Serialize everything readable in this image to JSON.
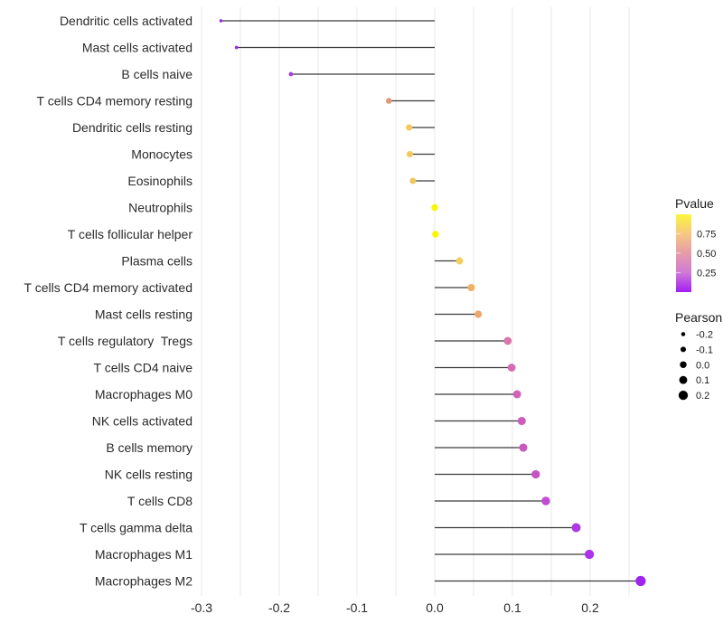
{
  "chart_data": {
    "type": "lollipop",
    "title": "",
    "xlabel": "",
    "ylabel": "",
    "xlim": [
      -0.305,
      0.303
    ],
    "grid": true,
    "grid_values": [
      -0.3,
      -0.25,
      -0.2,
      -0.15,
      -0.1,
      -0.05,
      0.0,
      0.05,
      0.1,
      0.15,
      0.2,
      0.25
    ],
    "x_ticks": [
      -0.3,
      -0.2,
      -0.1,
      0.0,
      0.1,
      0.2
    ],
    "x_tick_labels": [
      "-0.3",
      "-0.2",
      "-0.1",
      "0.0",
      "0.1",
      "0.2"
    ],
    "points": [
      {
        "label": "Dendritic cells activated",
        "pearson": -0.275,
        "color": "#a21ef0"
      },
      {
        "label": "Mast cells activated",
        "pearson": -0.255,
        "color": "#a026ec"
      },
      {
        "label": "B cells naive",
        "pearson": -0.185,
        "color": "#a738e5"
      },
      {
        "label": "T cells CD4 memory resting",
        "pearson": -0.059,
        "color": "#e2977b"
      },
      {
        "label": "Dendritic cells resting",
        "pearson": -0.033,
        "color": "#f2c95a"
      },
      {
        "label": "Monocytes",
        "pearson": -0.032,
        "color": "#f2c95a"
      },
      {
        "label": "Eosinophils",
        "pearson": -0.028,
        "color": "#f0c660"
      },
      {
        "label": "Neutrophils",
        "pearson": 0.0,
        "color": "#faf600"
      },
      {
        "label": "T cells follicular helper",
        "pearson": 0.001,
        "color": "#faf600"
      },
      {
        "label": "Plasma cells",
        "pearson": 0.032,
        "color": "#f2ce5e"
      },
      {
        "label": "T cells CD4 memory activated",
        "pearson": 0.047,
        "color": "#f0b165"
      },
      {
        "label": "Mast cells resting",
        "pearson": 0.056,
        "color": "#eea76d"
      },
      {
        "label": "T cells regulatory  Tregs",
        "pearson": 0.094,
        "color": "#d977ae"
      },
      {
        "label": "T cells CD4 naive",
        "pearson": 0.099,
        "color": "#d46cb3"
      },
      {
        "label": "Macrophages M0",
        "pearson": 0.106,
        "color": "#d162b7"
      },
      {
        "label": "NK cells activated",
        "pearson": 0.112,
        "color": "#ce5cba"
      },
      {
        "label": "B cells memory",
        "pearson": 0.114,
        "color": "#ca58bc"
      },
      {
        "label": "NK cells resting",
        "pearson": 0.13,
        "color": "#c453c8"
      },
      {
        "label": "T cells CD8",
        "pearson": 0.143,
        "color": "#c04dd2"
      },
      {
        "label": "T cells gamma delta",
        "pearson": 0.182,
        "color": "#ac3be3"
      },
      {
        "label": "Macrophages M1",
        "pearson": 0.199,
        "color": "#aa33e8"
      },
      {
        "label": "Macrophages M2",
        "pearson": 0.265,
        "color": "#9f24f0"
      }
    ],
    "legend_pvalue": {
      "title": "Pvalue",
      "gradient_stops": [
        {
          "value": 1.0,
          "color": "#fbf63c"
        },
        {
          "value": 0.75,
          "color": "#f7c783"
        },
        {
          "value": 0.5,
          "color": "#e69ca8"
        },
        {
          "value": 0.25,
          "color": "#cf7bd6"
        },
        {
          "value": 0.0,
          "color": "#a31ef3"
        }
      ],
      "ticks": [
        {
          "value": 0.75,
          "label": "0.75"
        },
        {
          "value": 0.5,
          "label": "0.50"
        },
        {
          "value": 0.25,
          "label": "0.25"
        }
      ]
    },
    "legend_pearson": {
      "title": "Pearson",
      "items": [
        {
          "value": -0.2,
          "label": "-0.2"
        },
        {
          "value": -0.1,
          "label": "-0.1"
        },
        {
          "value": 0.0,
          "label": "0.0"
        },
        {
          "value": 0.1,
          "label": "0.1"
        },
        {
          "value": 0.2,
          "label": "0.2"
        }
      ]
    },
    "colors": {
      "background": "#ffffff",
      "gridline": "#e9e9e9",
      "stem": "#3a3a3a",
      "axis_text": "#2b2b2b",
      "legend_text": "#1a1a1a",
      "legend_dot": "#000000"
    },
    "legend_position": "right"
  }
}
